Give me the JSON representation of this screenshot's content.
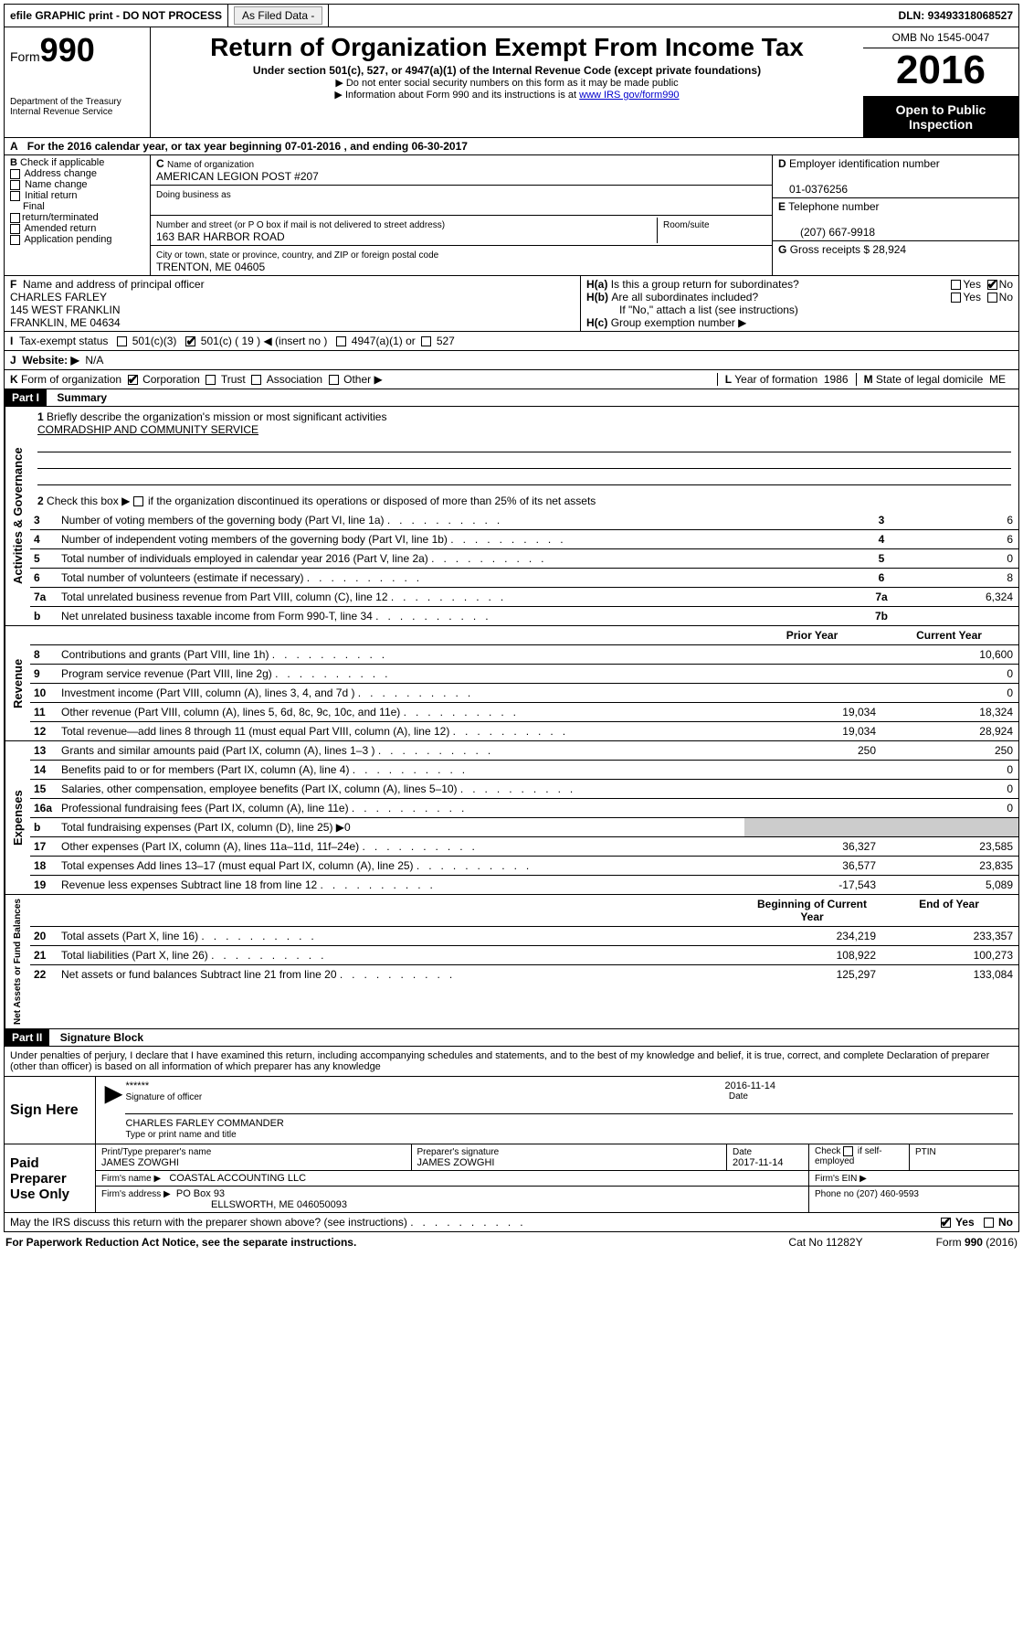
{
  "header": {
    "efile_text": "efile GRAPHIC print - DO NOT PROCESS",
    "asfiled_btn": "As Filed Data - ",
    "dln_label": "DLN:",
    "dln": "93493318068527",
    "form_prefix": "Form",
    "form_number": "990",
    "dept1": "Department of the Treasury",
    "dept2": "Internal Revenue Service",
    "title": "Return of Organization Exempt From Income Tax",
    "subtitle": "Under section 501(c), 527, or 4947(a)(1) of the Internal Revenue Code (except private foundations)",
    "note1": "▶ Do not enter social security numbers on this form as it may be made public",
    "note2_pre": "▶ Information about Form 990 and its instructions is at ",
    "note2_link": "www IRS gov/form990",
    "omb": "OMB No  1545-0047",
    "year": "2016",
    "inspect": "Open to Public Inspection"
  },
  "A": {
    "text_pre": "For the 2016 calendar year, or tax year beginning ",
    "begin": "07-01-2016",
    "mid": "  , and ending ",
    "end": "06-30-2017"
  },
  "B": {
    "label": "Check if applicable",
    "items": [
      "Address change",
      "Name change",
      "Initial return",
      "Final return/terminated",
      "Amended return",
      "Application pending"
    ]
  },
  "C": {
    "name_label": "Name of organization",
    "name": "AMERICAN LEGION POST #207",
    "dba_label": "Doing business as",
    "dba": "",
    "addr_label": "Number and street (or P O  box if mail is not delivered to street address)",
    "room_label": "Room/suite",
    "addr": "163 BAR HARBOR ROAD",
    "city_label": "City or town, state or province, country, and ZIP or foreign postal code",
    "city": "TRENTON, ME  04605"
  },
  "D": {
    "label": "Employer identification number",
    "val": "01-0376256"
  },
  "E": {
    "label": "Telephone number",
    "val": "(207) 667-9918"
  },
  "G": {
    "label": "Gross receipts $",
    "val": "28,924"
  },
  "F": {
    "label": "Name and address of principal officer",
    "name": "CHARLES FARLEY",
    "addr1": "145 WEST FRANKLIN",
    "addr2": "FRANKLIN, ME  04634"
  },
  "H": {
    "a": "Is this a group return for subordinates?",
    "b": "Are all subordinates included?",
    "b_note": "If \"No,\" attach a list  (see instructions)",
    "c": "Group exemption number ▶",
    "yes": "Yes",
    "no": "No"
  },
  "I": {
    "label": "Tax-exempt status",
    "opts": [
      "501(c)(3)",
      "501(c) ( 19 ) ◀ (insert no )",
      "4947(a)(1) or",
      "527"
    ],
    "checked_index": 1
  },
  "J": {
    "label": "Website: ▶",
    "val": "N/A"
  },
  "K": {
    "label": "Form of organization",
    "opts": [
      "Corporation",
      "Trust",
      "Association",
      "Other ▶"
    ],
    "checked_index": 0
  },
  "L": {
    "label": "Year of formation",
    "val": "1986"
  },
  "M": {
    "label": "State of legal domicile",
    "val": "ME"
  },
  "partI": {
    "hdr": "Part I",
    "title": "Summary",
    "q1_label": "Briefly describe the organization's mission or most significant activities",
    "q1_val": "COMRADSHIP AND COMMUNITY SERVICE",
    "q2": "Check this box ▶",
    "q2_post": "if the organization discontinued its operations or disposed of more than 25% of its net assets",
    "rows_simple": [
      {
        "n": "3",
        "t": "Number of voting members of the governing body (Part VI, line 1a)",
        "r": "3",
        "v": "6"
      },
      {
        "n": "4",
        "t": "Number of independent voting members of the governing body (Part VI, line 1b)",
        "r": "4",
        "v": "6"
      },
      {
        "n": "5",
        "t": "Total number of individuals employed in calendar year 2016 (Part V, line 2a)",
        "r": "5",
        "v": "0"
      },
      {
        "n": "6",
        "t": "Total number of volunteers (estimate if necessary)",
        "r": "6",
        "v": "8"
      },
      {
        "n": "7a",
        "t": "Total unrelated business revenue from Part VIII, column (C), line 12",
        "r": "7a",
        "v": "6,324"
      },
      {
        "n": "b",
        "t": "Net unrelated business taxable income from Form 990-T, line 34",
        "r": "7b",
        "v": ""
      }
    ],
    "col_hdr_prior": "Prior Year",
    "col_hdr_current": "Current Year",
    "revenue": [
      {
        "n": "8",
        "t": "Contributions and grants (Part VIII, line 1h)",
        "p": "",
        "c": "10,600"
      },
      {
        "n": "9",
        "t": "Program service revenue (Part VIII, line 2g)",
        "p": "",
        "c": "0"
      },
      {
        "n": "10",
        "t": "Investment income (Part VIII, column (A), lines 3, 4, and 7d )",
        "p": "",
        "c": "0"
      },
      {
        "n": "11",
        "t": "Other revenue (Part VIII, column (A), lines 5, 6d, 8c, 9c, 10c, and 11e)",
        "p": "19,034",
        "c": "18,324"
      },
      {
        "n": "12",
        "t": "Total revenue—add lines 8 through 11 (must equal Part VIII, column (A), line 12)",
        "p": "19,034",
        "c": "28,924"
      }
    ],
    "expenses": [
      {
        "n": "13",
        "t": "Grants and similar amounts paid (Part IX, column (A), lines 1–3 )",
        "p": "250",
        "c": "250"
      },
      {
        "n": "14",
        "t": "Benefits paid to or for members (Part IX, column (A), line 4)",
        "p": "",
        "c": "0"
      },
      {
        "n": "15",
        "t": "Salaries, other compensation, employee benefits (Part IX, column (A), lines 5–10)",
        "p": "",
        "c": "0"
      },
      {
        "n": "16a",
        "t": "Professional fundraising fees (Part IX, column (A), line 11e)",
        "p": "",
        "c": "0"
      },
      {
        "n": "b",
        "t": "Total fundraising expenses (Part IX, column (D), line 25) ▶0",
        "p": "",
        "c": "",
        "gray": true,
        "small": true
      },
      {
        "n": "17",
        "t": "Other expenses (Part IX, column (A), lines 11a–11d, 11f–24e)",
        "p": "36,327",
        "c": "23,585"
      },
      {
        "n": "18",
        "t": "Total expenses  Add lines 13–17 (must equal Part IX, column (A), line 25)",
        "p": "36,577",
        "c": "23,835"
      },
      {
        "n": "19",
        "t": "Revenue less expenses  Subtract line 18 from line 12",
        "p": "-17,543",
        "c": "5,089"
      }
    ],
    "col_hdr_begin": "Beginning of Current Year",
    "col_hdr_end": "End of Year",
    "netassets": [
      {
        "n": "20",
        "t": "Total assets (Part X, line 16)",
        "p": "234,219",
        "c": "233,357"
      },
      {
        "n": "21",
        "t": "Total liabilities (Part X, line 26)",
        "p": "108,922",
        "c": "100,273"
      },
      {
        "n": "22",
        "t": "Net assets or fund balances  Subtract line 21 from line 20",
        "p": "125,297",
        "c": "133,084"
      }
    ],
    "vtabs": {
      "gov": "Activities & Governance",
      "rev": "Revenue",
      "exp": "Expenses",
      "net": "Net Assets or Fund Balances"
    }
  },
  "partII": {
    "hdr": "Part II",
    "title": "Signature Block",
    "perjury": "Under penalties of perjury, I declare that I have examined this return, including accompanying schedules and statements, and to the best of my knowledge and belief, it is true, correct, and complete  Declaration of preparer (other than officer) is based on all information of which preparer has any knowledge",
    "sign_here": "Sign Here",
    "stars": "******",
    "sig_officer": "Signature of officer",
    "sig_date": "2016-11-14",
    "date_label": "Date",
    "officer_name": "CHARLES FARLEY  COMMANDER",
    "name_title": "Type or print name and title",
    "paid": "Paid Preparer Use Only",
    "prep_name_label": "Print/Type preparer's name",
    "prep_name": "JAMES ZOWGHI",
    "prep_sig_label": "Preparer's signature",
    "prep_sig": "JAMES ZOWGHI",
    "prep_date_label": "Date",
    "prep_date": "2017-11-14",
    "check_self": "Check",
    "check_self2": "if self-employed",
    "ptin": "PTIN",
    "firm_name_label": "Firm's name    ▶",
    "firm_name": "COASTAL ACCOUNTING LLC",
    "firm_ein": "Firm's EIN ▶",
    "firm_addr_label": "Firm's address ▶",
    "firm_addr1": "PO Box 93",
    "firm_addr2": "ELLSWORTH, ME  046050093",
    "firm_phone": "Phone no  (207) 460-9593",
    "discuss": "May the IRS discuss this return with the preparer shown above? (see instructions)",
    "yes": "Yes",
    "no": "No"
  },
  "footer": {
    "left": "For Paperwork Reduction Act Notice, see the separate instructions.",
    "mid": "Cat  No  11282Y",
    "right": "Form 990 (2016)"
  }
}
